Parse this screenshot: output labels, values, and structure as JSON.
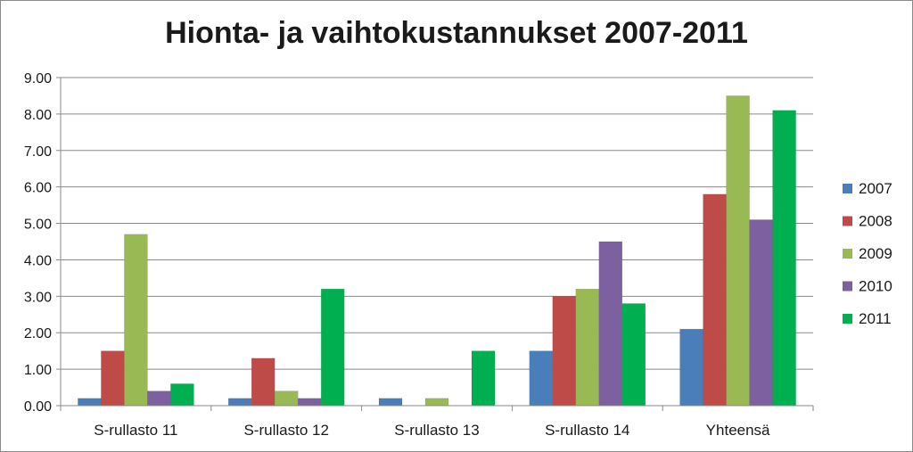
{
  "chart_data": {
    "type": "bar",
    "title": "Hionta- ja vaihtokustannukset 2007-2011",
    "xlabel": "",
    "ylabel": "",
    "ylim": [
      0,
      9
    ],
    "yticks": [
      "0.00",
      "1.00",
      "2.00",
      "3.00",
      "4.00",
      "5.00",
      "6.00",
      "7.00",
      "8.00",
      "9.00"
    ],
    "grid": true,
    "legend_position": "right",
    "categories": [
      "S-rullasto 11",
      "S-rullasto 12",
      "S-rullasto 13",
      "S-rullasto 14",
      "Yhteensä"
    ],
    "series": [
      {
        "name": "2007",
        "color": "#4a7ebb",
        "values": [
          0.2,
          0.2,
          0.2,
          1.5,
          2.1
        ]
      },
      {
        "name": "2008",
        "color": "#be4b48",
        "values": [
          1.5,
          1.3,
          0,
          3.0,
          5.8
        ]
      },
      {
        "name": "2009",
        "color": "#98b954",
        "values": [
          4.7,
          0.4,
          0.2,
          3.2,
          8.5
        ]
      },
      {
        "name": "2010",
        "color": "#7d60a0",
        "values": [
          0.4,
          0.2,
          0,
          4.5,
          5.1
        ]
      },
      {
        "name": "2011",
        "color": "#00b050",
        "values": [
          0.6,
          3.2,
          1.5,
          2.8,
          8.1
        ]
      }
    ]
  }
}
